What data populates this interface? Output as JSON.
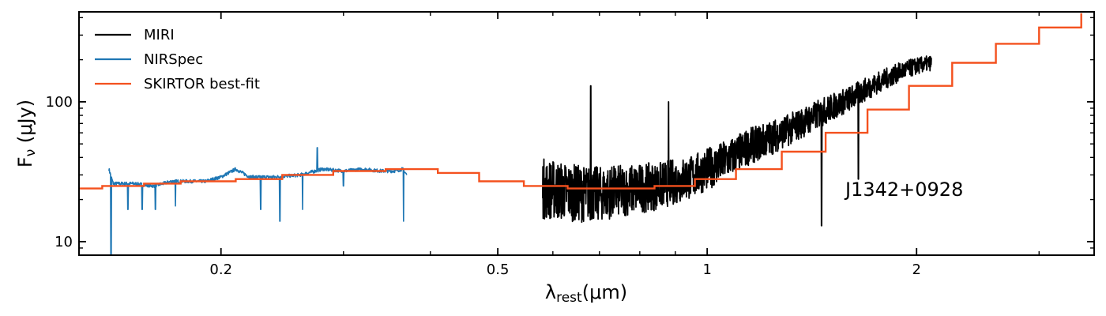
{
  "chart_data": {
    "type": "line",
    "xscale": "log",
    "yscale": "log",
    "xlim": [
      0.125,
      3.6
    ],
    "ylim": [
      8,
      440
    ],
    "xticks": [
      {
        "value": 0.2,
        "label": "0.2"
      },
      {
        "value": 0.5,
        "label": "0.5"
      },
      {
        "value": 1,
        "label": "1"
      },
      {
        "value": 2,
        "label": "2"
      }
    ],
    "yticks": [
      {
        "value": 10,
        "label": "10"
      },
      {
        "value": 100,
        "label": "100"
      }
    ],
    "xlabel": {
      "main": "λ",
      "sub": "rest",
      "rest": "(μm)"
    },
    "ylabel": {
      "main": "F",
      "sub": "ν",
      "rest": " (μJy)"
    },
    "annotation": "J1342+0928",
    "legend": {
      "placement": "top-left"
    },
    "series": [
      {
        "name": "MIRI",
        "color": "#000000",
        "style": "noisy-line",
        "x": [
          0.58,
          0.62,
          0.66,
          0.7,
          0.75,
          0.8,
          0.85,
          0.9,
          0.95,
          1.0,
          1.05,
          1.1,
          1.15,
          1.2,
          1.3,
          1.4,
          1.5,
          1.6,
          1.7,
          1.8,
          1.9,
          2.0,
          2.1
        ],
        "y": [
          24,
          23,
          22,
          22,
          23,
          24,
          25,
          27,
          29,
          33,
          37,
          42,
          48,
          52,
          62,
          75,
          90,
          105,
          125,
          145,
          165,
          180,
          190
        ],
        "spikes": [
          {
            "x": 0.68,
            "y": 130
          },
          {
            "x": 0.88,
            "y": 100
          },
          {
            "x": 1.46,
            "y": 13
          },
          {
            "x": 1.65,
            "y": 28
          }
        ]
      },
      {
        "name": "NIRSpec",
        "color": "#1f77b4",
        "style": "noisy-line",
        "x": [
          0.138,
          0.14,
          0.15,
          0.16,
          0.17,
          0.18,
          0.19,
          0.2,
          0.21,
          0.22,
          0.24,
          0.26,
          0.28,
          0.3,
          0.32,
          0.34,
          0.355,
          0.365,
          0.37
        ],
        "y": [
          33,
          26,
          26,
          25,
          27,
          27,
          27,
          29,
          33,
          29,
          29,
          30,
          33,
          32,
          33,
          32,
          32,
          33,
          30
        ],
        "spikes": [
          {
            "x": 0.137,
            "y": 7
          },
          {
            "x": 0.139,
            "y": 7
          },
          {
            "x": 0.147,
            "y": 17
          },
          {
            "x": 0.154,
            "y": 17
          },
          {
            "x": 0.161,
            "y": 17
          },
          {
            "x": 0.172,
            "y": 18
          },
          {
            "x": 0.228,
            "y": 17
          },
          {
            "x": 0.243,
            "y": 14
          },
          {
            "x": 0.262,
            "y": 17
          },
          {
            "x": 0.275,
            "y": 47
          },
          {
            "x": 0.3,
            "y": 25
          },
          {
            "x": 0.366,
            "y": 14
          }
        ]
      },
      {
        "name": "SKIRTOR best-fit",
        "color": "#f4511e",
        "style": "step",
        "edges": [
          0.125,
          0.135,
          0.155,
          0.175,
          0.21,
          0.245,
          0.29,
          0.345,
          0.41,
          0.47,
          0.545,
          0.63,
          0.73,
          0.84,
          0.96,
          1.1,
          1.28,
          1.48,
          1.7,
          1.95,
          2.25,
          2.6,
          3.0,
          3.45
        ],
        "values": [
          24,
          25,
          26,
          27,
          28,
          30,
          32,
          33,
          31,
          27,
          25,
          24,
          24,
          25,
          28,
          33,
          44,
          60,
          88,
          130,
          190,
          260,
          340,
          430
        ]
      }
    ]
  }
}
